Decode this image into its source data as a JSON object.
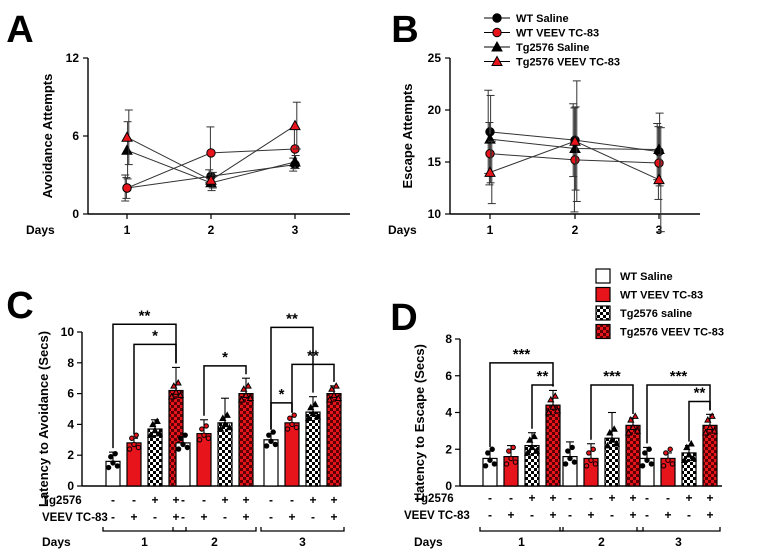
{
  "colors": {
    "red": "#e8141c",
    "black": "#000000",
    "white": "#ffffff"
  },
  "legend_top": [
    {
      "label": "WT Saline",
      "marker": "circle",
      "fill": "#000000"
    },
    {
      "label": "WT VEEV TC-83",
      "marker": "circle",
      "fill": "#e8141c"
    },
    {
      "label": "Tg2576 Saline",
      "marker": "triangle",
      "fill": "#000000"
    },
    {
      "label": "Tg2576 VEEV TC-83",
      "marker": "triangle",
      "fill": "#e8141c"
    }
  ],
  "legend_bottom": [
    {
      "label": "WT Saline",
      "pattern": "white"
    },
    {
      "label": "WT VEEV TC-83",
      "pattern": "red"
    },
    {
      "label": "Tg2576 saline",
      "pattern": "checker-white"
    },
    {
      "label": "Tg2576 VEEV TC-83",
      "pattern": "checker-red"
    }
  ],
  "chart_data": [
    {
      "panel": "A",
      "type": "line",
      "ylabel": "Avoidance Attempts",
      "xlabel": "Days",
      "x": [
        1,
        2,
        3
      ],
      "ylim": [
        0,
        12
      ],
      "yticks": [
        0,
        6,
        12
      ],
      "series": [
        {
          "name": "WT Saline",
          "values": [
            2.0,
            2.9,
            3.8
          ],
          "err": [
            1.0,
            0.5,
            0.5
          ]
        },
        {
          "name": "WT VEEV TC-83",
          "values": [
            2.0,
            4.7,
            5.0
          ],
          "err": [
            0.8,
            2.0,
            1.5
          ]
        },
        {
          "name": "Tg2576 Saline",
          "values": [
            4.9,
            2.4,
            4.0
          ],
          "err": [
            2.2,
            0.6,
            0.5
          ]
        },
        {
          "name": "Tg2576 VEEV TC-83",
          "values": [
            5.9,
            2.6,
            6.8
          ],
          "err": [
            2.1,
            0.6,
            1.8
          ]
        }
      ]
    },
    {
      "panel": "B",
      "type": "line",
      "ylabel": "Escape Attempts",
      "xlabel": "Days",
      "x": [
        1,
        2,
        3
      ],
      "ylim": [
        10,
        25
      ],
      "yticks": [
        10,
        15,
        20,
        25
      ],
      "series": [
        {
          "name": "WT Saline",
          "values": [
            17.9,
            17.1,
            16.0
          ],
          "err": [
            4.0,
            3.5,
            2.7
          ]
        },
        {
          "name": "WT VEEV TC-83",
          "values": [
            15.8,
            15.2,
            14.9
          ],
          "err": [
            3.0,
            5.0,
            3.5
          ]
        },
        {
          "name": "Tg2576 Saline",
          "values": [
            17.2,
            16.3,
            16.2
          ],
          "err": [
            4.2,
            4.0,
            3.5
          ]
        },
        {
          "name": "Tg2576 VEEV TC-83",
          "values": [
            14.0,
            17.0,
            13.3
          ],
          "err": [
            3.0,
            5.8,
            5.0
          ]
        }
      ]
    },
    {
      "panel": "C",
      "type": "bar",
      "ylabel": "Latency to Avoidance (Secs)",
      "xlabel": "Days",
      "categories": [
        "1",
        "2",
        "3"
      ],
      "ylim": [
        0,
        10
      ],
      "yticks": [
        0,
        2,
        4,
        6,
        8,
        10
      ],
      "series": [
        {
          "name": "WT Saline",
          "values": [
            1.6,
            2.8,
            3.0
          ],
          "err": [
            0.6,
            0.4,
            0.4
          ]
        },
        {
          "name": "WT VEEV TC-83",
          "values": [
            2.8,
            3.4,
            4.1
          ],
          "err": [
            0.3,
            0.9,
            0.4
          ]
        },
        {
          "name": "Tg2576 saline",
          "values": [
            3.7,
            4.1,
            4.8
          ],
          "err": [
            0.6,
            1.6,
            1.0
          ]
        },
        {
          "name": "Tg2576 VEEV TC-83",
          "values": [
            6.2,
            6.0,
            6.0
          ],
          "err": [
            1.5,
            1.0,
            0.5
          ]
        }
      ],
      "significance": [
        {
          "day": 1,
          "from": "WT Saline",
          "to": "Tg2576 VEEV TC-83",
          "label": "**",
          "at": 10.5
        },
        {
          "day": 1,
          "from": "WT VEEV TC-83",
          "to": "Tg2576 VEEV TC-83",
          "label": "*",
          "at": 9.2
        },
        {
          "day": 2,
          "from": "WT VEEV TC-83",
          "to": "Tg2576 VEEV TC-83",
          "label": "*",
          "at": 7.8
        },
        {
          "day": 3,
          "from": "WT Saline",
          "to": "Tg2576 saline",
          "label": "**",
          "at": 10.3
        },
        {
          "day": 3,
          "from": "WT Saline",
          "to": "WT VEEV TC-83",
          "label": "*",
          "at": 5.4
        },
        {
          "day": 3,
          "from": "WT VEEV TC-83",
          "to": "Tg2576 VEEV TC-83",
          "label": "**",
          "at": 7.9
        }
      ],
      "factors": [
        {
          "label": "Tg2576",
          "signs": [
            "-",
            "-",
            "+",
            "+"
          ]
        },
        {
          "label": "VEEV  TC-83",
          "signs": [
            "-",
            "+",
            "-",
            "+"
          ]
        }
      ]
    },
    {
      "panel": "D",
      "type": "bar",
      "ylabel": "Latency to Escape (Secs)",
      "xlabel": "Days",
      "categories": [
        "1",
        "2",
        "3"
      ],
      "ylim": [
        0,
        8
      ],
      "yticks": [
        0,
        2,
        4,
        6,
        8
      ],
      "series": [
        {
          "name": "WT Saline",
          "values": [
            1.5,
            1.6,
            1.5
          ],
          "err": [
            0.4,
            0.8,
            0.6
          ]
        },
        {
          "name": "WT VEEV TC-83",
          "values": [
            1.6,
            1.5,
            1.5
          ],
          "err": [
            0.6,
            0.8,
            0.3
          ]
        },
        {
          "name": "Tg2576 saline",
          "values": [
            2.2,
            2.6,
            1.8
          ],
          "err": [
            0.7,
            1.4,
            0.4
          ]
        },
        {
          "name": "Tg2576 VEEV TC-83",
          "values": [
            4.4,
            3.3,
            3.3
          ],
          "err": [
            0.8,
            0.4,
            0.6
          ]
        }
      ],
      "significance": [
        {
          "day": 1,
          "from": "WT Saline",
          "to": "Tg2576 VEEV TC-83",
          "label": "***",
          "at": 6.7
        },
        {
          "day": 1,
          "from": "Tg2576 saline",
          "to": "Tg2576 VEEV TC-83",
          "label": "**",
          "at": 5.5
        },
        {
          "day": 2,
          "from": "WT VEEV TC-83",
          "to": "Tg2576 VEEV TC-83",
          "label": "***",
          "at": 5.5
        },
        {
          "day": 3,
          "from": "WT Saline",
          "to": "Tg2576 VEEV TC-83",
          "label": "***",
          "at": 5.5
        },
        {
          "day": 3,
          "from": "Tg2576 saline",
          "to": "Tg2576 VEEV TC-83",
          "label": "**",
          "at": 4.6
        }
      ],
      "factors": [
        {
          "label": "Tg2576",
          "signs": [
            "-",
            "-",
            "+",
            "+"
          ]
        },
        {
          "label": "VEEV  TC-83",
          "signs": [
            "-",
            "+",
            "-",
            "+"
          ]
        }
      ]
    }
  ]
}
